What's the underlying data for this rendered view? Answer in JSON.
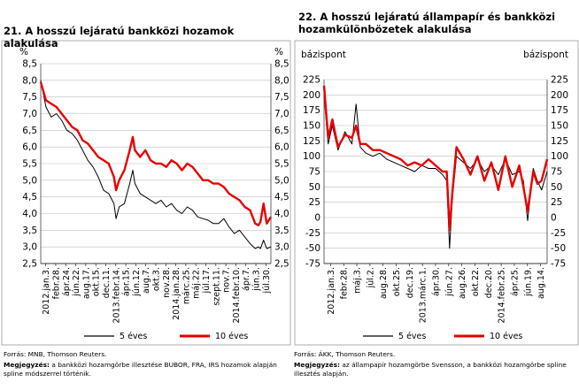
{
  "charts": [
    {
      "title": "21. A hosszú lejáratú bankközi hozamok alakulása",
      "left_unit": "%",
      "right_unit": "%",
      "source": "Forrás: MNB, Thomson Reuters.",
      "note_label": "Megjegyzés:",
      "note": "a bankközi hozamgörbe illesztése BUBOR, FRA, IRS hozamok alapján spline módszerrel történik."
    },
    {
      "title": "22. A hosszú lejáratú állampapír és bankközi hozamkülönbözetek alakulása",
      "left_unit": "bázispont",
      "right_unit": "bázispont",
      "source": "Forrás: ÁKK, Thomson Reuters.",
      "note_label": "Megjegyzés:",
      "note": "az állampapír hozamgörbe Svensson, a bankközi hozamgörbe spline illesztés alapján."
    }
  ],
  "chart_data": [
    {
      "type": "line",
      "title": "21. A hosszú lejáratú bankközi hozamok alakulása",
      "ylabel": "%",
      "ylim": [
        2.5,
        8.5
      ],
      "yticks": [
        "8,5",
        "8,0",
        "7,5",
        "7,0",
        "6,5",
        "6,0",
        "5,5",
        "5,0",
        "4,5",
        "4,0",
        "3,5",
        "3,0",
        "2,5"
      ],
      "x_tick_labels": [
        "2012.jan.3.",
        "febr.28.",
        "ápr.24.",
        "jún.22.",
        "aug.17.",
        "okt.15.",
        "dec.11.",
        "2013.febr.14.",
        "ápr.15.",
        "jún.12.",
        "aug.7.",
        "okt.3.",
        "nov.28.",
        "2014.jan.28.",
        "márc.25.",
        "máj.22.",
        "júl.17.",
        "szept.11.",
        "nov.7.",
        "2014.febr.10.",
        "ápr.7.",
        "jún.3.",
        "júl.30."
      ],
      "x_range": [
        0,
        22
      ],
      "grid": true,
      "legend_position": "bottom",
      "series": [
        {
          "name": "5 éves",
          "color": "#000000",
          "x": [
            0,
            0.5,
            1,
            1.5,
            2,
            2.5,
            3,
            3.5,
            4,
            4.5,
            5,
            5.5,
            6,
            6.5,
            7,
            7.2,
            7.5,
            8,
            8.5,
            8.8,
            9,
            9.5,
            10,
            10.5,
            11,
            11.5,
            12,
            12.5,
            13,
            13.5,
            14,
            14.5,
            15,
            15.5,
            16,
            16.5,
            17,
            17.5,
            18,
            18.5,
            19,
            19.5,
            20,
            20.5,
            20.8,
            21,
            21.3,
            21.6,
            22
          ],
          "values": [
            8.0,
            7.2,
            6.9,
            7.0,
            6.8,
            6.5,
            6.4,
            6.2,
            5.9,
            5.6,
            5.4,
            5.1,
            4.7,
            4.6,
            4.3,
            3.85,
            4.2,
            4.3,
            4.9,
            5.3,
            4.9,
            4.6,
            4.5,
            4.4,
            4.3,
            4.4,
            4.2,
            4.3,
            4.1,
            4.0,
            4.2,
            4.1,
            3.9,
            3.85,
            3.8,
            3.7,
            3.7,
            3.85,
            3.6,
            3.4,
            3.5,
            3.3,
            3.1,
            2.95,
            3.0,
            2.95,
            3.2,
            2.95,
            3.0
          ]
        },
        {
          "name": "10 éves",
          "color": "#e80000",
          "x": [
            0,
            0.5,
            1,
            1.5,
            2,
            2.5,
            3,
            3.5,
            4,
            4.5,
            5,
            5.5,
            6,
            6.5,
            7,
            7.2,
            7.5,
            8,
            8.5,
            8.8,
            9,
            9.5,
            10,
            10.5,
            11,
            11.5,
            12,
            12.5,
            13,
            13.5,
            14,
            14.5,
            15,
            15.5,
            16,
            16.5,
            17,
            17.5,
            18,
            18.5,
            19,
            19.5,
            20,
            20.5,
            20.8,
            21,
            21.3,
            21.6,
            22
          ],
          "values": [
            7.95,
            7.4,
            7.3,
            7.2,
            7.0,
            6.8,
            6.6,
            6.5,
            6.2,
            6.1,
            5.9,
            5.7,
            5.6,
            5.5,
            5.1,
            4.7,
            5.0,
            5.3,
            5.9,
            6.3,
            5.9,
            5.7,
            5.9,
            5.6,
            5.5,
            5.5,
            5.4,
            5.6,
            5.5,
            5.3,
            5.5,
            5.4,
            5.2,
            5.0,
            5.0,
            4.9,
            4.9,
            4.8,
            4.6,
            4.5,
            4.4,
            4.2,
            4.1,
            3.7,
            3.65,
            3.75,
            4.3,
            3.7,
            3.9
          ]
        }
      ]
    },
    {
      "type": "line",
      "title": "22. A hosszú lejáratú állampapír és bankközi hozamkülönbözetek alakulása",
      "ylabel": "bázispont",
      "ylim": [
        -75,
        225
      ],
      "yticks": [
        "225",
        "200",
        "175",
        "150",
        "125",
        "100",
        "75",
        "50",
        "25",
        "0",
        "-25",
        "-50",
        "-75"
      ],
      "x_tick_labels": [
        "2012.jan.3.",
        "febr.28.",
        "máj.3.",
        "júl.2.",
        "aug.28.",
        "okt.25.",
        "dec.19.",
        "2013.márc.1.",
        "ápr.30.",
        "jún.27.",
        "aug.26.",
        "okt.22.",
        "dec.20.",
        "2014.febr.25.",
        "ápr.25.",
        "jún.19.",
        "aug.14."
      ],
      "x_range": [
        0,
        16
      ],
      "grid": true,
      "legend_position": "bottom",
      "series": [
        {
          "name": "5 éves",
          "color": "#000000",
          "x": [
            0,
            0.3,
            0.6,
            1,
            1.5,
            2,
            2.3,
            2.6,
            3,
            3.5,
            4,
            4.5,
            5,
            5.5,
            6,
            6.5,
            7,
            7.5,
            8,
            8.5,
            8.8,
            9,
            9.2,
            9.5,
            10,
            10.5,
            11,
            11.5,
            12,
            12.5,
            13,
            13.5,
            14,
            14.3,
            14.6,
            15,
            15.3,
            15.6,
            16
          ],
          "values": [
            200,
            120,
            150,
            110,
            140,
            120,
            185,
            115,
            105,
            100,
            105,
            95,
            90,
            85,
            80,
            75,
            85,
            80,
            80,
            70,
            60,
            -50,
            30,
            100,
            90,
            80,
            95,
            75,
            85,
            70,
            95,
            70,
            75,
            60,
            -5,
            80,
            60,
            45,
            75
          ]
        },
        {
          "name": "10 éves",
          "color": "#e80000",
          "x": [
            0,
            0.3,
            0.6,
            1,
            1.5,
            2,
            2.3,
            2.6,
            3,
            3.5,
            4,
            4.5,
            5,
            5.5,
            6,
            6.5,
            7,
            7.5,
            8,
            8.5,
            8.8,
            9,
            9.2,
            9.5,
            10,
            10.5,
            11,
            11.5,
            12,
            12.5,
            13,
            13.5,
            14,
            14.3,
            14.6,
            15,
            15.3,
            15.6,
            16
          ],
          "values": [
            215,
            130,
            160,
            115,
            135,
            130,
            150,
            120,
            120,
            110,
            110,
            105,
            100,
            95,
            85,
            90,
            85,
            95,
            85,
            75,
            75,
            -20,
            40,
            115,
            95,
            70,
            100,
            60,
            90,
            45,
            100,
            50,
            85,
            50,
            10,
            75,
            55,
            60,
            95
          ]
        }
      ]
    }
  ],
  "legend": {
    "series1": "5 éves",
    "series2": "10 éves"
  }
}
